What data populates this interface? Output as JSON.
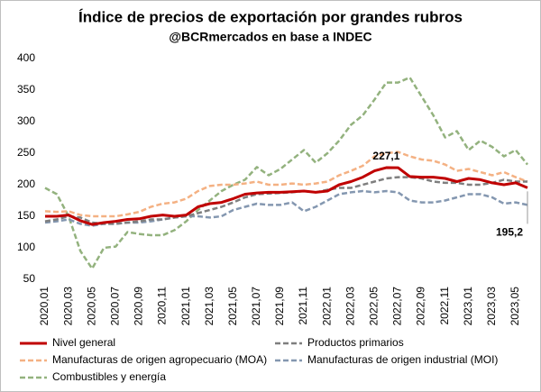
{
  "chart_data": {
    "type": "line",
    "title": "Índice de precios de exportación por grandes rubros",
    "subtitle": "@BCRmercados en base a INDEC",
    "categories": [
      "2020,01",
      null,
      "2020,03",
      null,
      "2020,05",
      null,
      "2020,07",
      null,
      "2020,09",
      null,
      "2020,11",
      null,
      "2021,01",
      null,
      "2021,03",
      null,
      "2021,05",
      null,
      "2021,07",
      null,
      "2021,09",
      null,
      "2021,11",
      null,
      "2022,01",
      null,
      "2022,03",
      null,
      "2022,05",
      null,
      "2022,07",
      null,
      "2022,09",
      null,
      "2022,11",
      null,
      "2023,01",
      null,
      "2023,03",
      null,
      "2023,05",
      null
    ],
    "ylim": [
      50,
      400
    ],
    "yticks": [
      50,
      100,
      150,
      200,
      250,
      300,
      350,
      400
    ],
    "grid": false,
    "series": [
      {
        "name": "Nivel general",
        "color": "#c00000",
        "dashed": false,
        "values": [
          150,
          150,
          152,
          143,
          137,
          140,
          142,
          145,
          146,
          150,
          152,
          150,
          152,
          165,
          170,
          172,
          178,
          185,
          187,
          188,
          188,
          189,
          190,
          188,
          190,
          200,
          205,
          212,
          222,
          227.1,
          227,
          213,
          212,
          212,
          210,
          205,
          210,
          208,
          203,
          200,
          203,
          195.2
        ],
        "value_labels": [
          null,
          null,
          null,
          null,
          null,
          null,
          null,
          null,
          null,
          null,
          null,
          null,
          null,
          null,
          null,
          null,
          null,
          null,
          null,
          null,
          null,
          null,
          null,
          null,
          null,
          null,
          null,
          null,
          null,
          "227,1",
          null,
          null,
          null,
          null,
          null,
          null,
          null,
          null,
          null,
          null,
          null,
          "195,2"
        ]
      },
      {
        "name": "Productos primarios",
        "color": "#7f7f7f",
        "dashed": true,
        "values": [
          142,
          145,
          150,
          148,
          140,
          138,
          138,
          140,
          142,
          145,
          145,
          148,
          150,
          155,
          160,
          165,
          172,
          180,
          185,
          186,
          187,
          188,
          190,
          188,
          192,
          195,
          195,
          200,
          205,
          210,
          212,
          212,
          210,
          205,
          203,
          203,
          200,
          200,
          203,
          208,
          205,
          205
        ]
      },
      {
        "name": "Manufacturas de origen agropecuario (MOA)",
        "color": "#f4b183",
        "dashed": true,
        "values": [
          158,
          157,
          158,
          152,
          150,
          150,
          150,
          153,
          157,
          165,
          170,
          172,
          178,
          190,
          198,
          200,
          200,
          202,
          205,
          200,
          200,
          202,
          200,
          202,
          205,
          215,
          222,
          230,
          245,
          250,
          252,
          245,
          240,
          238,
          232,
          222,
          225,
          220,
          215,
          220,
          212,
          205
        ]
      },
      {
        "name": "Manufacturas de origen industrial (MOI)",
        "color": "#8497b0",
        "dashed": true,
        "values": [
          140,
          142,
          145,
          138,
          135,
          138,
          138,
          140,
          140,
          142,
          145,
          148,
          150,
          150,
          148,
          150,
          160,
          165,
          170,
          168,
          168,
          172,
          158,
          165,
          175,
          185,
          188,
          190,
          188,
          190,
          188,
          175,
          172,
          172,
          175,
          180,
          185,
          185,
          180,
          170,
          172,
          168
        ]
      },
      {
        "name": "Combustibles y energía",
        "color": "#93b27e",
        "dashed": true,
        "values": [
          195,
          185,
          150,
          95,
          67,
          100,
          102,
          125,
          122,
          120,
          120,
          128,
          142,
          160,
          175,
          190,
          200,
          208,
          228,
          215,
          225,
          240,
          255,
          235,
          250,
          270,
          295,
          310,
          335,
          362,
          362,
          370,
          340,
          310,
          275,
          285,
          255,
          270,
          260,
          245,
          255,
          232
        ]
      }
    ]
  }
}
